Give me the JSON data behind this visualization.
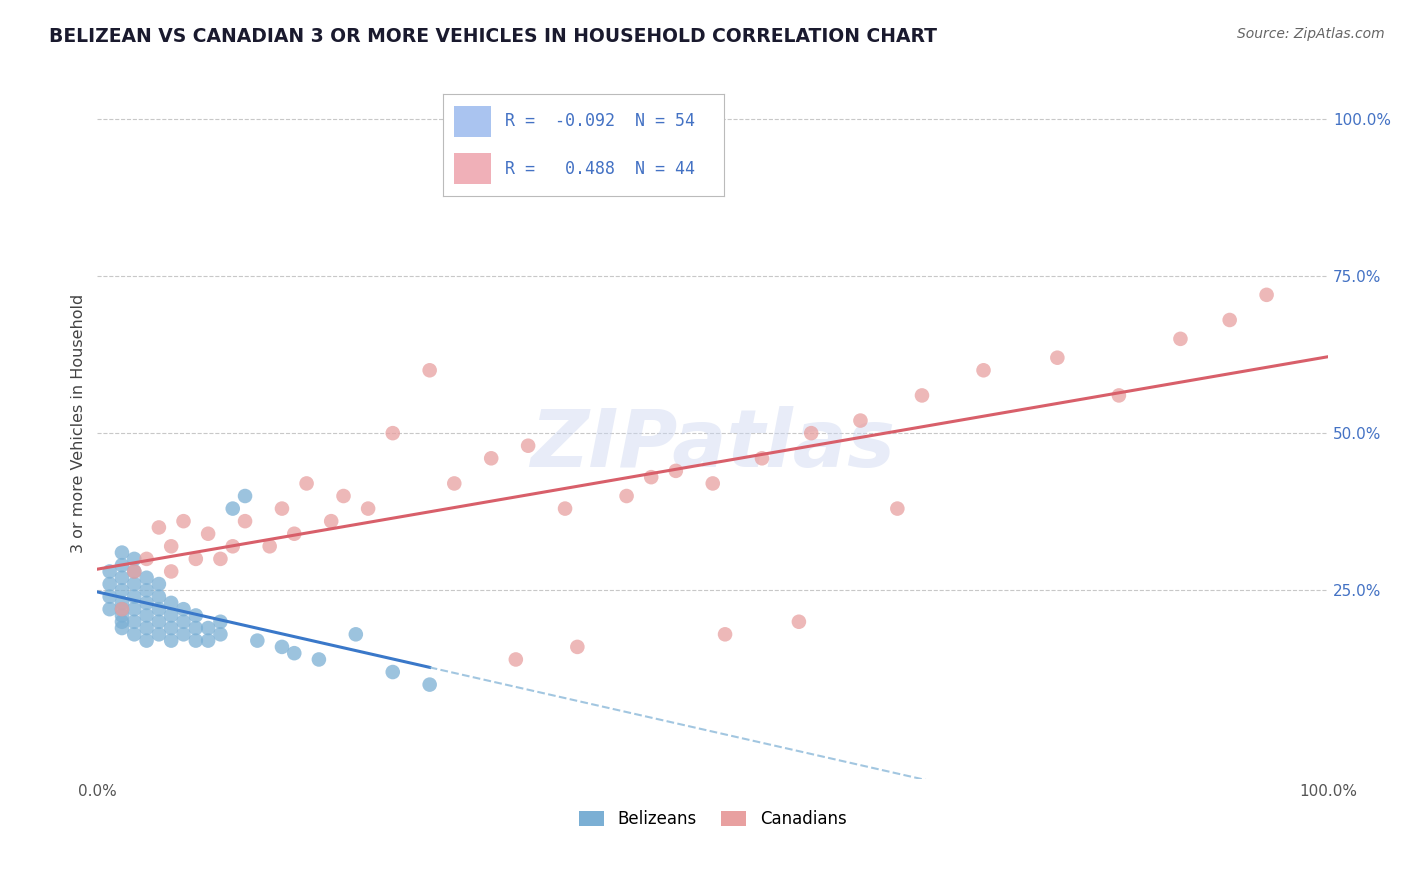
{
  "title": "BELIZEAN VS CANADIAN 3 OR MORE VEHICLES IN HOUSEHOLD CORRELATION CHART",
  "source": "Source: ZipAtlas.com",
  "ylabel": "3 or more Vehicles in Household",
  "xlim": [
    0.0,
    1.0
  ],
  "ylim": [
    -0.05,
    1.08
  ],
  "y_tick_positions": [
    0.25,
    0.5,
    0.75,
    1.0
  ],
  "belizean_color": "#7bafd4",
  "canadian_color": "#e8a0a0",
  "belizean_line_color": "#3a78c9",
  "belizean_dash_color": "#7bafd4",
  "canadian_line_color": "#d85f6a",
  "legend_box_color_belizean": "#aac4f0",
  "legend_box_color_canadian": "#f0b0b8",
  "R_belizean": -0.092,
  "N_belizean": 54,
  "R_canadian": 0.488,
  "N_canadian": 44,
  "belizean_x": [
    0.01,
    0.01,
    0.01,
    0.01,
    0.02,
    0.02,
    0.02,
    0.02,
    0.02,
    0.02,
    0.02,
    0.02,
    0.02,
    0.03,
    0.03,
    0.03,
    0.03,
    0.03,
    0.03,
    0.03,
    0.04,
    0.04,
    0.04,
    0.04,
    0.04,
    0.04,
    0.05,
    0.05,
    0.05,
    0.05,
    0.05,
    0.06,
    0.06,
    0.06,
    0.06,
    0.07,
    0.07,
    0.07,
    0.08,
    0.08,
    0.08,
    0.09,
    0.09,
    0.1,
    0.1,
    0.11,
    0.12,
    0.13,
    0.15,
    0.16,
    0.18,
    0.21,
    0.24,
    0.27
  ],
  "belizean_y": [
    0.22,
    0.24,
    0.26,
    0.28,
    0.19,
    0.21,
    0.22,
    0.23,
    0.25,
    0.27,
    0.29,
    0.31,
    0.2,
    0.18,
    0.2,
    0.22,
    0.24,
    0.26,
    0.28,
    0.3,
    0.17,
    0.19,
    0.21,
    0.23,
    0.25,
    0.27,
    0.18,
    0.2,
    0.22,
    0.24,
    0.26,
    0.17,
    0.19,
    0.21,
    0.23,
    0.18,
    0.2,
    0.22,
    0.17,
    0.19,
    0.21,
    0.17,
    0.19,
    0.18,
    0.2,
    0.38,
    0.4,
    0.17,
    0.16,
    0.15,
    0.14,
    0.18,
    0.12,
    0.1
  ],
  "canadian_x": [
    0.02,
    0.03,
    0.04,
    0.05,
    0.06,
    0.06,
    0.07,
    0.08,
    0.09,
    0.1,
    0.11,
    0.12,
    0.14,
    0.15,
    0.16,
    0.17,
    0.19,
    0.2,
    0.22,
    0.24,
    0.27,
    0.29,
    0.32,
    0.35,
    0.38,
    0.43,
    0.47,
    0.5,
    0.54,
    0.58,
    0.62,
    0.67,
    0.72,
    0.78,
    0.83,
    0.88,
    0.92,
    0.95,
    0.65,
    0.45,
    0.34,
    0.39,
    0.51,
    0.57
  ],
  "canadian_y": [
    0.22,
    0.28,
    0.3,
    0.35,
    0.28,
    0.32,
    0.36,
    0.3,
    0.34,
    0.3,
    0.32,
    0.36,
    0.32,
    0.38,
    0.34,
    0.42,
    0.36,
    0.4,
    0.38,
    0.5,
    0.6,
    0.42,
    0.46,
    0.48,
    0.38,
    0.4,
    0.44,
    0.42,
    0.46,
    0.5,
    0.52,
    0.56,
    0.6,
    0.62,
    0.56,
    0.65,
    0.68,
    0.72,
    0.38,
    0.43,
    0.14,
    0.16,
    0.18,
    0.2
  ],
  "background_color": "#ffffff",
  "grid_color": "#c8c8c8",
  "watermark_text": "ZIPatlas",
  "watermark_color": "#ccd6f0",
  "watermark_alpha": 0.45
}
